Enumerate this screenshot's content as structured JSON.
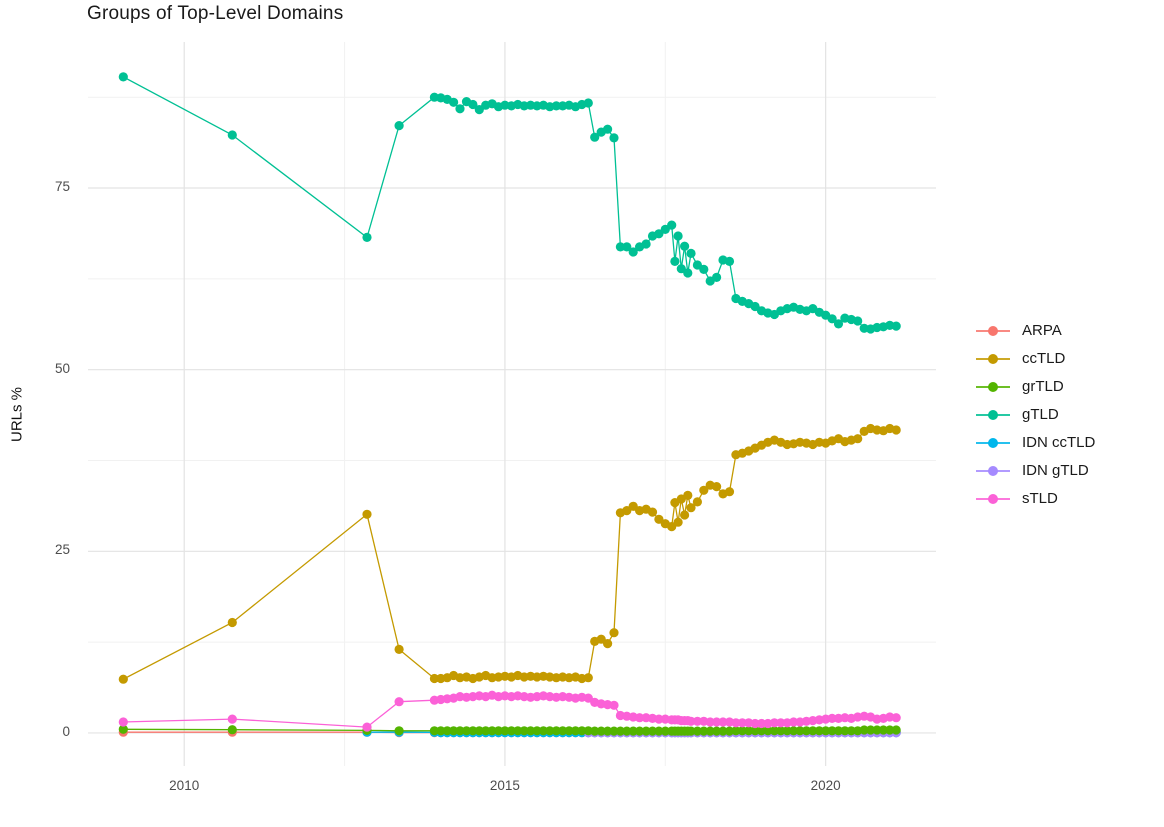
{
  "title": "Groups of Top-Level Domains",
  "y_axis_title": "URLs %",
  "chart_data": {
    "type": "line",
    "title": "Groups of Top-Level Domains",
    "xlabel": "",
    "ylabel": "URLs %",
    "grid": true,
    "legend_position": "right",
    "xlim": [
      2008.5,
      2021.72
    ],
    "ylim": [
      -4.55,
      95.1
    ],
    "x_ticks": [
      2010,
      2015,
      2020
    ],
    "x_tick_labels": [
      "2010",
      "2015",
      "2020"
    ],
    "x_minor_ticks": [
      2012.5,
      2017.5
    ],
    "y_ticks": [
      0,
      25,
      50,
      75
    ],
    "y_tick_labels": [
      "0",
      "25",
      "50",
      "75"
    ],
    "y_minor_ticks": [
      12.5,
      37.5,
      62.5,
      87.5
    ],
    "x": [
      2009.05,
      2010.75,
      2012.85,
      2013.35,
      2013.9,
      2014.0,
      2014.1,
      2014.2,
      2014.3,
      2014.4,
      2014.5,
      2014.6,
      2014.7,
      2014.8,
      2014.9,
      2015.0,
      2015.1,
      2015.2,
      2015.3,
      2015.4,
      2015.5,
      2015.6,
      2015.7,
      2015.8,
      2015.9,
      2016.0,
      2016.1,
      2016.2,
      2016.3,
      2016.4,
      2016.5,
      2016.6,
      2016.7,
      2016.8,
      2016.9,
      2017.0,
      2017.1,
      2017.2,
      2017.3,
      2017.4,
      2017.5,
      2017.6,
      2017.65,
      2017.7,
      2017.75,
      2017.8,
      2017.85,
      2017.9,
      2018.0,
      2018.1,
      2018.2,
      2018.3,
      2018.4,
      2018.5,
      2018.6,
      2018.7,
      2018.8,
      2018.9,
      2019.0,
      2019.1,
      2019.2,
      2019.3,
      2019.4,
      2019.5,
      2019.6,
      2019.7,
      2019.8,
      2019.9,
      2020.0,
      2020.1,
      2020.2,
      2020.3,
      2020.4,
      2020.5,
      2020.6,
      2020.7,
      2020.8,
      2020.9,
      2021.0,
      2021.1
    ],
    "series": [
      {
        "name": "ARPA",
        "color": "#F8766D",
        "values": [
          0.1,
          0.1,
          0.1,
          0.05,
          0.05,
          0.05,
          0.05,
          0.05,
          0.05,
          0.05,
          0.05,
          0.05,
          0.05,
          0.05,
          0.05,
          0.05,
          0.05,
          0.05,
          0.05,
          0.05,
          0.05,
          0.05,
          0.05,
          0.05,
          0.05,
          0.05,
          0.05,
          0.05,
          0.05,
          0.05,
          0.05,
          0.05,
          0.05,
          0.05,
          0.05,
          0.05,
          0.05,
          0.05,
          0.05,
          0.05,
          0.05,
          0.05,
          0.05,
          0.05,
          0.05,
          0.05,
          0.05,
          0.05,
          0.05,
          0.05,
          0.05,
          0.05,
          0.05,
          0.05,
          0.05,
          0.05,
          0.05,
          0.05,
          0.05,
          0.05,
          0.05,
          0.05,
          0.05,
          0.05,
          0.05,
          0.05,
          0.05,
          0.05,
          0.05,
          0.05,
          0.05,
          0.05,
          0.05,
          0.05,
          0.05,
          0.05,
          0.05,
          0.05,
          0.05,
          0.05
        ]
      },
      {
        "name": "ccTLD",
        "color": "#C49A00",
        "values": [
          7.4,
          15.2,
          30.1,
          11.5,
          7.5,
          7.5,
          7.6,
          7.9,
          7.6,
          7.7,
          7.5,
          7.7,
          7.9,
          7.6,
          7.7,
          7.8,
          7.7,
          7.9,
          7.7,
          7.8,
          7.7,
          7.8,
          7.7,
          7.6,
          7.7,
          7.6,
          7.7,
          7.5,
          7.6,
          12.6,
          12.9,
          12.3,
          13.8,
          30.3,
          30.6,
          31.2,
          30.6,
          30.8,
          30.4,
          29.4,
          28.8,
          28.4,
          31.7,
          29.0,
          32.2,
          30.0,
          32.7,
          31.0,
          31.8,
          33.4,
          34.1,
          33.9,
          32.9,
          33.2,
          38.3,
          38.5,
          38.8,
          39.2,
          39.6,
          40.0,
          40.3,
          40.0,
          39.7,
          39.8,
          40.0,
          39.9,
          39.7,
          40.0,
          39.9,
          40.2,
          40.5,
          40.1,
          40.3,
          40.5,
          41.5,
          41.9,
          41.7,
          41.6,
          41.9,
          41.7
        ]
      },
      {
        "name": "grTLD",
        "color": "#53B400",
        "values": [
          0.5,
          0.45,
          0.35,
          0.3,
          0.3,
          0.3,
          0.3,
          0.3,
          0.3,
          0.3,
          0.3,
          0.3,
          0.3,
          0.3,
          0.3,
          0.3,
          0.3,
          0.3,
          0.3,
          0.3,
          0.3,
          0.3,
          0.3,
          0.3,
          0.3,
          0.3,
          0.3,
          0.3,
          0.3,
          0.25,
          0.25,
          0.25,
          0.25,
          0.25,
          0.25,
          0.25,
          0.25,
          0.25,
          0.25,
          0.25,
          0.25,
          0.25,
          0.25,
          0.25,
          0.25,
          0.25,
          0.25,
          0.25,
          0.25,
          0.25,
          0.25,
          0.25,
          0.25,
          0.25,
          0.3,
          0.3,
          0.3,
          0.3,
          0.3,
          0.3,
          0.3,
          0.3,
          0.3,
          0.3,
          0.3,
          0.3,
          0.3,
          0.3,
          0.3,
          0.3,
          0.3,
          0.3,
          0.3,
          0.3,
          0.4,
          0.4,
          0.4,
          0.4,
          0.4,
          0.4
        ]
      },
      {
        "name": "gTLD",
        "color": "#00C094",
        "values": [
          90.3,
          82.3,
          68.2,
          83.6,
          87.5,
          87.4,
          87.2,
          86.8,
          85.9,
          86.9,
          86.5,
          85.8,
          86.4,
          86.6,
          86.2,
          86.4,
          86.3,
          86.5,
          86.3,
          86.4,
          86.3,
          86.4,
          86.2,
          86.3,
          86.3,
          86.4,
          86.2,
          86.5,
          86.7,
          82.0,
          82.7,
          83.1,
          81.9,
          66.9,
          66.9,
          66.2,
          66.9,
          67.3,
          68.4,
          68.7,
          69.3,
          69.9,
          64.9,
          68.4,
          63.9,
          67.0,
          63.3,
          66.0,
          64.4,
          63.8,
          62.2,
          62.7,
          65.1,
          64.9,
          59.8,
          59.4,
          59.1,
          58.7,
          58.1,
          57.8,
          57.6,
          58.1,
          58.4,
          58.6,
          58.3,
          58.1,
          58.4,
          57.9,
          57.5,
          57.0,
          56.3,
          57.1,
          56.9,
          56.7,
          55.7,
          55.6,
          55.8,
          55.9,
          56.1,
          56.0
        ]
      },
      {
        "name": "IDN ccTLD",
        "color": "#00B6EB",
        "values": [
          null,
          null,
          0.1,
          0.1,
          0.08,
          0.05,
          0.05,
          0.05,
          0.05,
          0.05,
          0.05,
          0.05,
          0.05,
          0.05,
          0.05,
          0.05,
          0.05,
          0.05,
          0.05,
          0.05,
          0.05,
          0.05,
          0.05,
          0.05,
          0.05,
          0.05,
          0.05,
          0.05,
          0.05,
          0.05,
          0.05,
          0.05,
          0.05,
          0.05,
          0.05,
          0.05,
          0.05,
          0.05,
          0.05,
          0.05,
          0.05,
          0.05,
          0.05,
          0.05,
          0.05,
          0.05,
          0.05,
          0.05,
          0.05,
          0.05,
          0.05,
          0.05,
          0.05,
          0.05,
          0.05,
          0.05,
          0.05,
          0.05,
          0.05,
          0.05,
          0.05,
          0.05,
          0.05,
          0.05,
          0.05,
          0.05,
          0.05,
          0.05,
          0.05,
          0.05,
          0.05,
          0.05,
          0.05,
          0.05,
          0.05,
          0.05,
          0.05,
          0.05,
          0.05,
          0.05
        ]
      },
      {
        "name": "IDN gTLD",
        "color": "#A58AFF",
        "values": [
          null,
          null,
          null,
          null,
          null,
          null,
          null,
          null,
          null,
          null,
          null,
          null,
          null,
          null,
          null,
          null,
          null,
          null,
          null,
          null,
          null,
          null,
          null,
          null,
          null,
          null,
          null,
          null,
          0.03,
          0.03,
          0.03,
          0.03,
          0.03,
          0.03,
          0.03,
          0.03,
          0.03,
          0.03,
          0.03,
          0.03,
          0.03,
          0.03,
          0.03,
          0.03,
          0.03,
          0.03,
          0.03,
          0.03,
          0.03,
          0.03,
          0.03,
          0.03,
          0.03,
          0.03,
          0.03,
          0.03,
          0.03,
          0.03,
          0.03,
          0.03,
          0.03,
          0.03,
          0.03,
          0.03,
          0.03,
          0.03,
          0.03,
          0.03,
          0.03,
          0.03,
          0.03,
          0.03,
          0.03,
          0.03,
          0.03,
          0.03,
          0.03,
          0.03,
          0.03,
          0.03
        ]
      },
      {
        "name": "sTLD",
        "color": "#FB61D7",
        "values": [
          1.5,
          1.9,
          0.8,
          4.3,
          4.5,
          4.6,
          4.7,
          4.8,
          5.0,
          4.9,
          5.0,
          5.1,
          5.0,
          5.2,
          5.0,
          5.1,
          5.0,
          5.1,
          5.0,
          4.9,
          5.0,
          5.1,
          5.0,
          4.9,
          5.0,
          4.9,
          4.8,
          4.9,
          4.8,
          4.2,
          4.0,
          3.9,
          3.8,
          2.4,
          2.3,
          2.2,
          2.1,
          2.1,
          2.0,
          1.9,
          1.9,
          1.8,
          1.8,
          1.8,
          1.7,
          1.7,
          1.7,
          1.6,
          1.6,
          1.6,
          1.5,
          1.5,
          1.5,
          1.5,
          1.4,
          1.4,
          1.4,
          1.3,
          1.3,
          1.3,
          1.4,
          1.4,
          1.4,
          1.5,
          1.5,
          1.6,
          1.7,
          1.8,
          1.9,
          2.0,
          2.0,
          2.1,
          2.0,
          2.2,
          2.3,
          2.2,
          1.9,
          2.0,
          2.2,
          2.1
        ]
      }
    ]
  }
}
